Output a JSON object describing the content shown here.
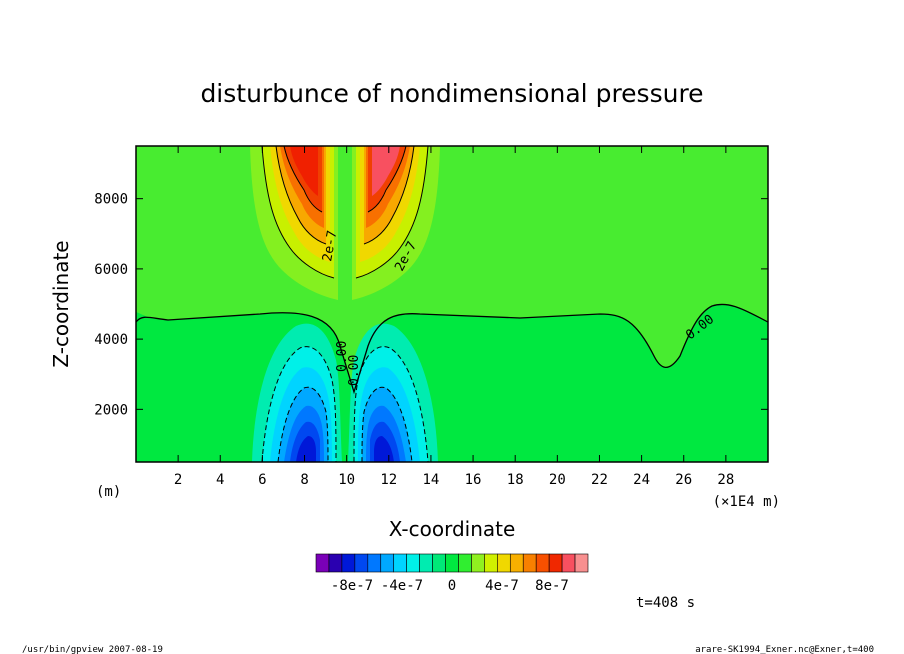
{
  "chart_data": {
    "type": "heatmap",
    "title": "disturbunce of nondimensional pressure",
    "xlabel": "X-coordinate",
    "ylabel": "Z-coordinate",
    "x_unit_left": "(m)",
    "x_unit_right": "(×1E4 m)",
    "xlim": [
      0,
      30
    ],
    "ylim": [
      500,
      9500
    ],
    "x_ticks": [
      2,
      4,
      6,
      8,
      10,
      12,
      14,
      16,
      18,
      20,
      22,
      24,
      26,
      28
    ],
    "x_tick_labels": [
      "2",
      "4",
      "6",
      "8",
      "10",
      "12",
      "14",
      "16",
      "18",
      "20",
      "22",
      "24",
      "26",
      "28"
    ],
    "y_ticks": [
      2000,
      4000,
      6000,
      8000
    ],
    "y_tick_labels": [
      "2000",
      "4000",
      "6000",
      "8000"
    ],
    "contour_labels": [
      "2e-7",
      "2e-7",
      "0.00",
      "0.00",
      "0.00"
    ],
    "colorbar": {
      "colors": [
        "#7a00b8",
        "#2a00b0",
        "#0018d8",
        "#0048f0",
        "#0078ff",
        "#00a8ff",
        "#00d4ff",
        "#00f0e8",
        "#00ecb0",
        "#00e878",
        "#00e840",
        "#30ee30",
        "#90f020",
        "#d0f000",
        "#f0d800",
        "#f8b000",
        "#f88000",
        "#f85000",
        "#f02800",
        "#f85060",
        "#f89090"
      ],
      "tick_labels": [
        "-8e-7",
        "-4e-7",
        "0",
        "4e-7",
        "8e-7"
      ]
    },
    "time_label": "t=408 s",
    "footer_left": "/usr/bin/gpview   2007-08-19",
    "footer_right": "arare-SK1994_Exner.nc@Exner,t=400",
    "grid": false
  }
}
